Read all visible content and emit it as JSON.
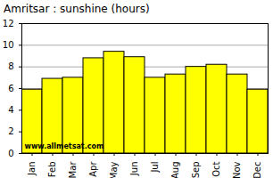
{
  "chart_data": {
    "type": "bar",
    "title": "Amritsar : sunshine (hours)",
    "categories": [
      "Jan",
      "Feb",
      "Mar",
      "Apr",
      "May",
      "Jun",
      "Jul",
      "Aug",
      "Sep",
      "Oct",
      "Nov",
      "Dec"
    ],
    "values": [
      5.9,
      6.9,
      7.0,
      8.8,
      9.4,
      8.9,
      7.0,
      7.3,
      8.0,
      8.2,
      7.3,
      5.9
    ],
    "color": "#ffff00",
    "ylim": [
      0,
      12
    ],
    "yticks": [
      0,
      2,
      4,
      6,
      8,
      10,
      12
    ],
    "grid": true,
    "annotations": [
      "www.allmetsat.com"
    ]
  }
}
